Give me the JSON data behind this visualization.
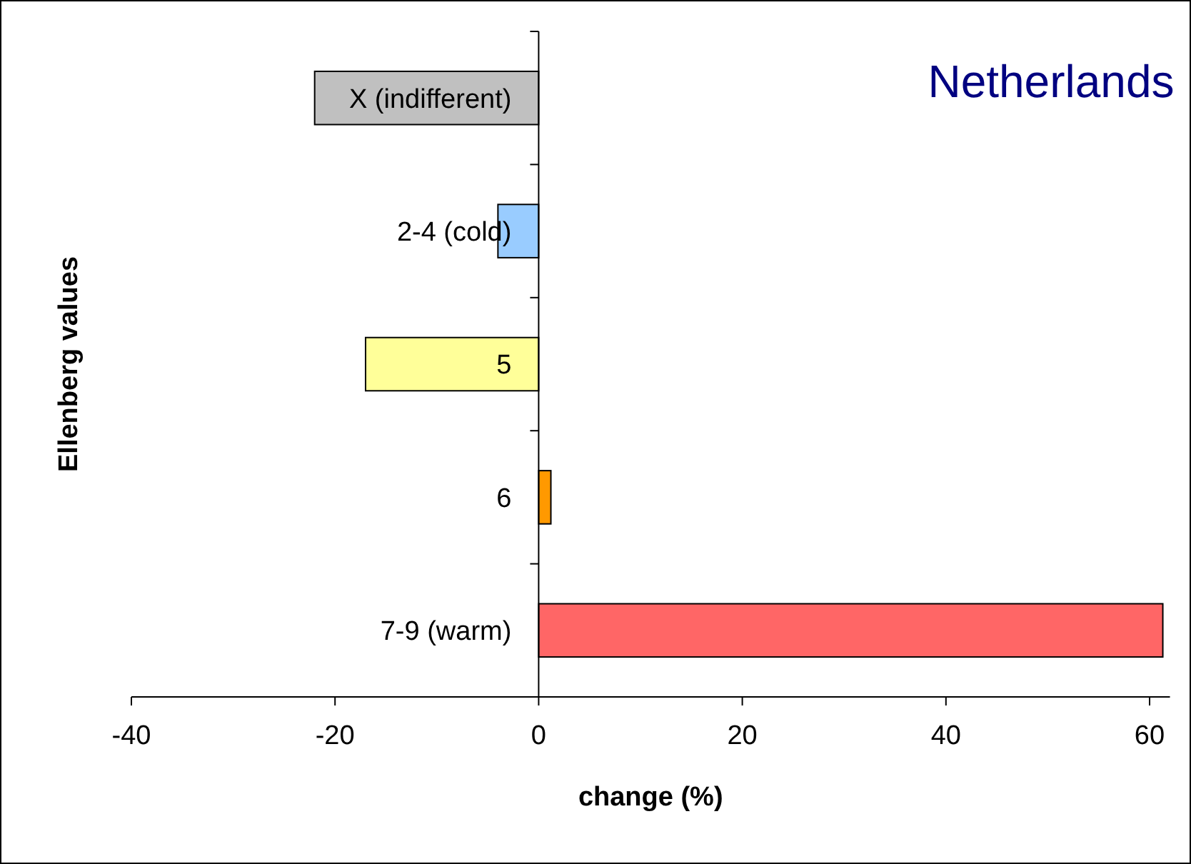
{
  "chart_data": {
    "type": "bar",
    "orientation": "horizontal",
    "title": "Netherlands",
    "xlabel": "change (%)",
    "ylabel": "Ellenberg values",
    "categories": [
      "X (indifferent)",
      "2-4 (cold)",
      "5",
      "6",
      "7-9 (warm)"
    ],
    "values": [
      -22,
      -4,
      -17,
      1.2,
      61.3
    ],
    "colors": [
      "#c0c0c0",
      "#99ccff",
      "#ffff99",
      "#ff9900",
      "#ff6666"
    ],
    "xlim": [
      -40,
      62
    ],
    "xticks": [
      -40,
      -20,
      0,
      20,
      40,
      60
    ],
    "grid": false
  }
}
